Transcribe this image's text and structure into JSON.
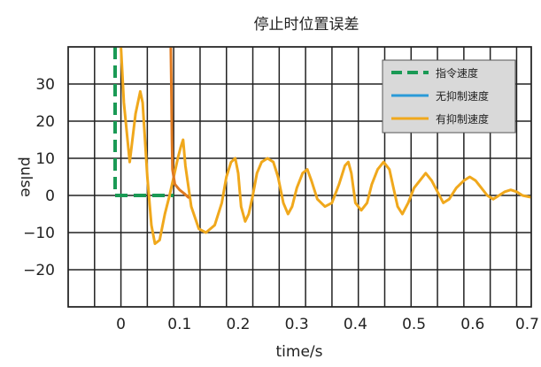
{
  "chart_data": {
    "type": "line",
    "title": "停止时位置误差",
    "xlabel": "time/s",
    "ylabel": "pulse",
    "xlim": [
      -0.09,
      0.7
    ],
    "ylim": [
      -30,
      40
    ],
    "xticks": [
      0,
      0.1,
      0.2,
      0.3,
      0.4,
      0.5,
      0.6,
      0.7
    ],
    "xtick_labels": [
      "0",
      "0.1",
      "0.2",
      "0.3",
      "0.4",
      "0.5",
      "0.6",
      "0.7"
    ],
    "yticks": [
      -20,
      -10,
      0,
      10,
      20,
      30
    ],
    "ytick_labels": [
      "−20",
      "−10",
      "0",
      "10",
      "20",
      "30"
    ],
    "vgrid_x": [
      -0.045,
      0,
      0.045,
      0.09,
      0.135,
      0.18,
      0.225,
      0.27,
      0.315,
      0.36,
      0.405,
      0.45,
      0.495,
      0.54,
      0.585,
      0.63,
      0.675
    ],
    "grid": true,
    "legend_position": "top-right",
    "series": [
      {
        "name": "指令速度",
        "color": "#1a9a55",
        "style": "dashed",
        "points": [
          [
            -0.01,
            40
          ],
          [
            -0.01,
            0
          ],
          [
            0.09,
            0
          ]
        ]
      },
      {
        "name": "无抑制速度",
        "color": "#2a9ad8",
        "style": "solid",
        "points": []
      },
      {
        "name": "有抑制速度",
        "color": "#f0a81c",
        "style": "solid",
        "points": [
          [
            0.0,
            40
          ],
          [
            0.005,
            25
          ],
          [
            0.015,
            9
          ],
          [
            0.025,
            22
          ],
          [
            0.033,
            28
          ],
          [
            0.037,
            25
          ],
          [
            0.045,
            5
          ],
          [
            0.052,
            -8
          ],
          [
            0.058,
            -13
          ],
          [
            0.066,
            -12
          ],
          [
            0.075,
            -5
          ],
          [
            0.083,
            0
          ],
          [
            0.09,
            5
          ],
          [
            0.097,
            10
          ],
          [
            0.102,
            13
          ],
          [
            0.106,
            15
          ],
          [
            0.11,
            8
          ],
          [
            0.12,
            -3
          ],
          [
            0.133,
            -9
          ],
          [
            0.145,
            -10
          ],
          [
            0.16,
            -8
          ],
          [
            0.172,
            -2
          ],
          [
            0.18,
            5
          ],
          [
            0.188,
            9
          ],
          [
            0.195,
            10
          ],
          [
            0.2,
            6
          ],
          [
            0.205,
            -3
          ],
          [
            0.212,
            -7
          ],
          [
            0.218,
            -5
          ],
          [
            0.225,
            0
          ],
          [
            0.232,
            6
          ],
          [
            0.24,
            9
          ],
          [
            0.25,
            10
          ],
          [
            0.26,
            9
          ],
          [
            0.268,
            5
          ],
          [
            0.277,
            -2
          ],
          [
            0.285,
            -5
          ],
          [
            0.292,
            -3
          ],
          [
            0.3,
            2
          ],
          [
            0.31,
            6
          ],
          [
            0.318,
            7
          ],
          [
            0.325,
            4
          ],
          [
            0.335,
            -1
          ],
          [
            0.348,
            -3
          ],
          [
            0.36,
            -2
          ],
          [
            0.372,
            3
          ],
          [
            0.382,
            8
          ],
          [
            0.388,
            9
          ],
          [
            0.393,
            6
          ],
          [
            0.4,
            -2
          ],
          [
            0.41,
            -4
          ],
          [
            0.42,
            -2
          ],
          [
            0.428,
            3
          ],
          [
            0.438,
            7
          ],
          [
            0.448,
            9
          ],
          [
            0.458,
            7
          ],
          [
            0.465,
            2
          ],
          [
            0.472,
            -3
          ],
          [
            0.48,
            -5
          ],
          [
            0.49,
            -2
          ],
          [
            0.5,
            2
          ],
          [
            0.51,
            4
          ],
          [
            0.52,
            6
          ],
          [
            0.53,
            4
          ],
          [
            0.54,
            1
          ],
          [
            0.55,
            -2
          ],
          [
            0.56,
            -1
          ],
          [
            0.572,
            2
          ],
          [
            0.585,
            4
          ],
          [
            0.595,
            5
          ],
          [
            0.605,
            4
          ],
          [
            0.615,
            2
          ],
          [
            0.625,
            0
          ],
          [
            0.635,
            -1
          ],
          [
            0.645,
            0
          ],
          [
            0.655,
            1
          ],
          [
            0.665,
            1.5
          ],
          [
            0.675,
            1
          ],
          [
            0.685,
            0
          ],
          [
            0.7,
            -0.5
          ]
        ]
      },
      {
        "name": "",
        "color": "#e07a20",
        "style": "solid",
        "points": [
          [
            0.085,
            40
          ],
          [
            0.086,
            30
          ],
          [
            0.087,
            15
          ],
          [
            0.088,
            7
          ],
          [
            0.092,
            3
          ],
          [
            0.1,
            1.5
          ],
          [
            0.108,
            0.5
          ],
          [
            0.115,
            -0.5
          ]
        ]
      }
    ]
  }
}
